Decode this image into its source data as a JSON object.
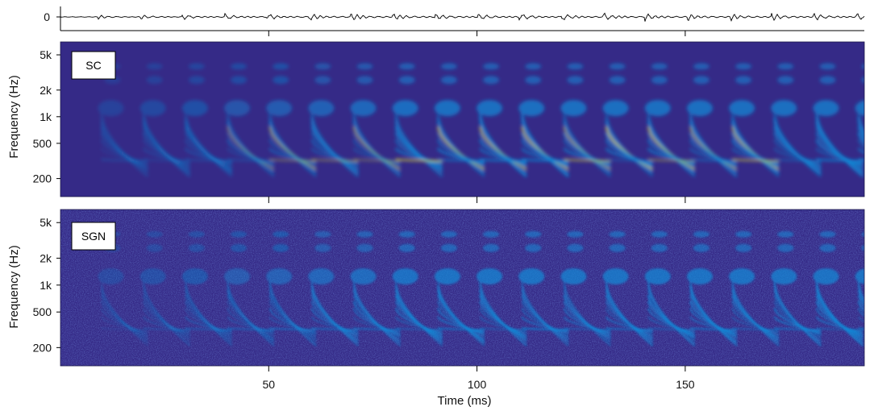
{
  "chart_data": [
    {
      "type": "line",
      "panel": "waveform",
      "ytick_labels": [
        "0"
      ],
      "x_unit_ms": [
        0,
        193
      ],
      "description_free": true
    },
    {
      "type": "heatmap",
      "panel": "SC",
      "label": "SC",
      "ylabel": "Frequency (Hz)",
      "ytick_labels": [
        "5k",
        "2k",
        "1k",
        "500",
        "200"
      ],
      "ytick_values_hz": [
        5000,
        2000,
        1000,
        500,
        200
      ],
      "ylim_hz": [
        125,
        7000
      ],
      "yscale": "log",
      "colormap": "parula",
      "xlim_ms": [
        0,
        193
      ]
    },
    {
      "type": "heatmap",
      "panel": "SGN",
      "label": "SGN",
      "ylabel": "Frequency (Hz)",
      "ytick_labels": [
        "5k",
        "2k",
        "1k",
        "500",
        "200"
      ],
      "ytick_values_hz": [
        5000,
        2000,
        1000,
        500,
        200
      ],
      "ylim_hz": [
        125,
        7000
      ],
      "yscale": "log",
      "colormap": "parula",
      "xlim_ms": [
        0,
        193
      ]
    }
  ],
  "xaxis": {
    "label": "Time (ms)",
    "tick_values": [
      50,
      100,
      150
    ],
    "tick_labels": [
      "50",
      "100",
      "150"
    ]
  },
  "colors": {
    "background_low": "#352a87",
    "mid": "#0f8bd9",
    "high": "#d9d62a",
    "waveform": "#000000"
  }
}
